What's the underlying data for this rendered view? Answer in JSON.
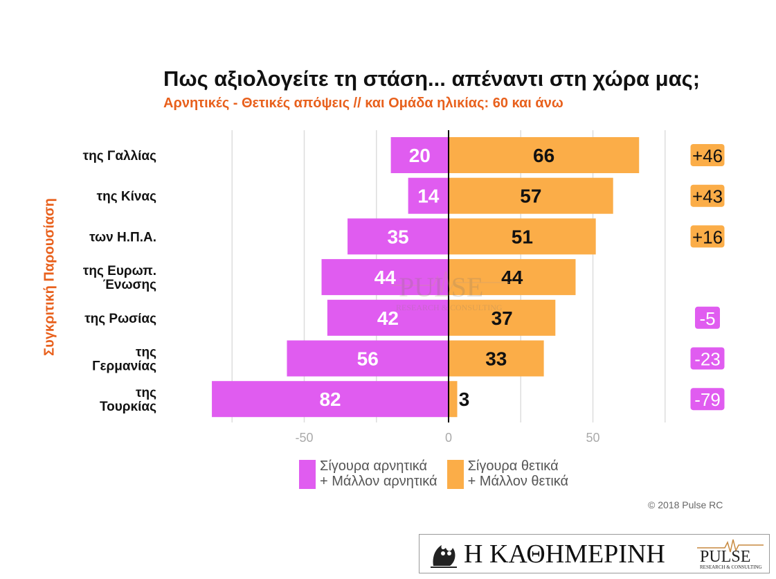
{
  "title": "Πως αξιολογείτε τη στάση... απέναντι στη χώρα μας;",
  "subtitle": "Αρνητικές - Θετικές απόψεις // και Ομάδα ηλικίας: 60 και άνω",
  "colors": {
    "negative": "#e05cf0",
    "positive": "#fbad48",
    "accent": "#e8601c"
  },
  "chart_data": {
    "type": "bar",
    "orientation": "horizontal-diverging",
    "categories": [
      [
        "της Γαλλίας"
      ],
      [
        "της Κίνας"
      ],
      [
        "των Η.Π.Α."
      ],
      [
        "της Ευρωπ.",
        "Ένωσης"
      ],
      [
        "της Ρωσίας"
      ],
      [
        "της",
        "Γερμανίας"
      ],
      [
        "της",
        "Τουρκίας"
      ]
    ],
    "series": [
      {
        "name": "Σίγουρα αρνητικά + Μάλλον αρνητικά",
        "values": [
          20,
          14,
          35,
          44,
          42,
          56,
          82
        ]
      },
      {
        "name": "Σίγουρα θετικά + Μάλλον θετικά",
        "values": [
          66,
          57,
          51,
          44,
          37,
          33,
          3
        ]
      }
    ],
    "net": [
      "+46",
      "+43",
      "+16",
      "",
      "-5",
      "-23",
      "-79"
    ],
    "xlim": [
      -82,
      74
    ],
    "xticks": [
      -50,
      0,
      50
    ],
    "xtick_labels": [
      "-50",
      "0",
      "50"
    ],
    "ylabel": "Συγκριτική Παρουσίαση",
    "grid": true
  },
  "legend": {
    "negative": [
      "Σίγουρα αρνητικά",
      "+ Μάλλον αρνητικά"
    ],
    "positive": [
      "Σίγουρα θετικά",
      "+ Μάλλον θετικά"
    ]
  },
  "copyright": "© 2018 Pulse RC",
  "footer": {
    "newspaper": "Η ΚΑΘΗΜΕΡΙΝΗ",
    "pollster": "PULSE",
    "pollster_tagline": "RESEARCH & CONSULTING"
  },
  "watermark": {
    "name": "PULSE",
    "tagline": "RESEARCH & CONSULTING"
  }
}
